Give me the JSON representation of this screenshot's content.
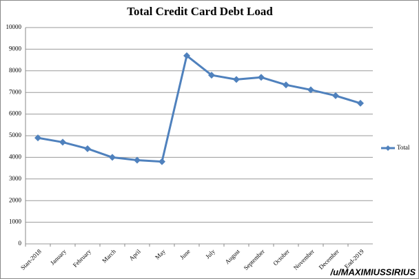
{
  "chart_data": {
    "type": "line",
    "title": "Total Credit Card Debt Load",
    "categories": [
      "Start-2018",
      "January",
      "February",
      "March",
      "April",
      "May",
      "June",
      "July",
      "August",
      "September",
      "October",
      "November",
      "December",
      "End-2019"
    ],
    "series": [
      {
        "name": "Total",
        "color": "#4f81bd",
        "values": [
          4900,
          4700,
          4400,
          4000,
          3870,
          3800,
          8700,
          7800,
          7600,
          7700,
          7350,
          7120,
          6850,
          6500
        ]
      }
    ],
    "ylim": [
      0,
      10000
    ],
    "yticks": [
      0,
      1000,
      2000,
      3000,
      4000,
      5000,
      6000,
      7000,
      8000,
      9000,
      10000
    ],
    "grid": true,
    "legend": "right",
    "annotation": "/u/MAXIMIUSSIRIUS"
  }
}
